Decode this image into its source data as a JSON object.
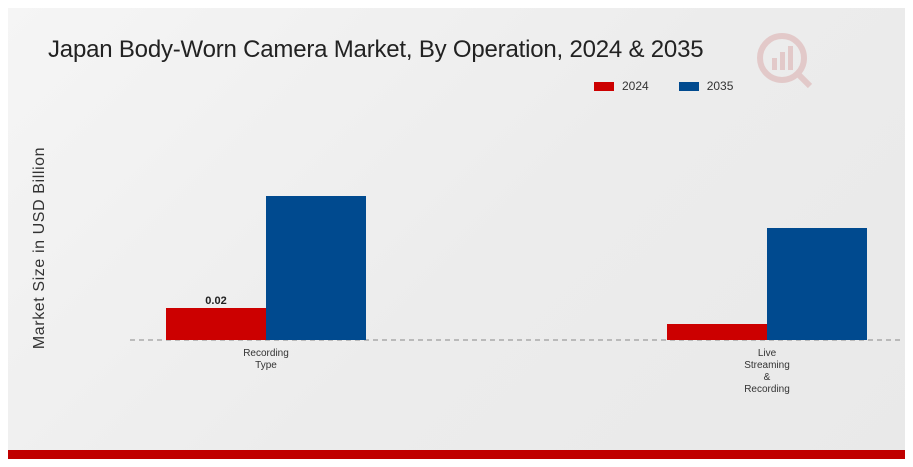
{
  "colors": {
    "series_2024": "#cc0000",
    "series_2035": "#004a8f",
    "accent_bar": "#c00000"
  },
  "chart_data": {
    "type": "bar",
    "title": "Japan Body-Worn Camera Market, By Operation, 2024 & 2035",
    "ylabel": "Market Size in USD Billion",
    "xlabel": "",
    "categories": [
      "Recording Type",
      "Live Streaming & Recording"
    ],
    "category_label_lines": [
      [
        "Recording",
        "Type"
      ],
      [
        "Live",
        "Streaming",
        "&",
        "Recording"
      ]
    ],
    "series": [
      {
        "name": "2024",
        "values": [
          0.02,
          0.01
        ]
      },
      {
        "name": "2035",
        "values": [
          0.09,
          0.07
        ]
      }
    ],
    "data_labels": {
      "2024": [
        "0.02",
        ""
      ]
    },
    "ylim": [
      0,
      0.1
    ],
    "legend_position": "top-right",
    "grid": false,
    "baseline": "dashed"
  }
}
